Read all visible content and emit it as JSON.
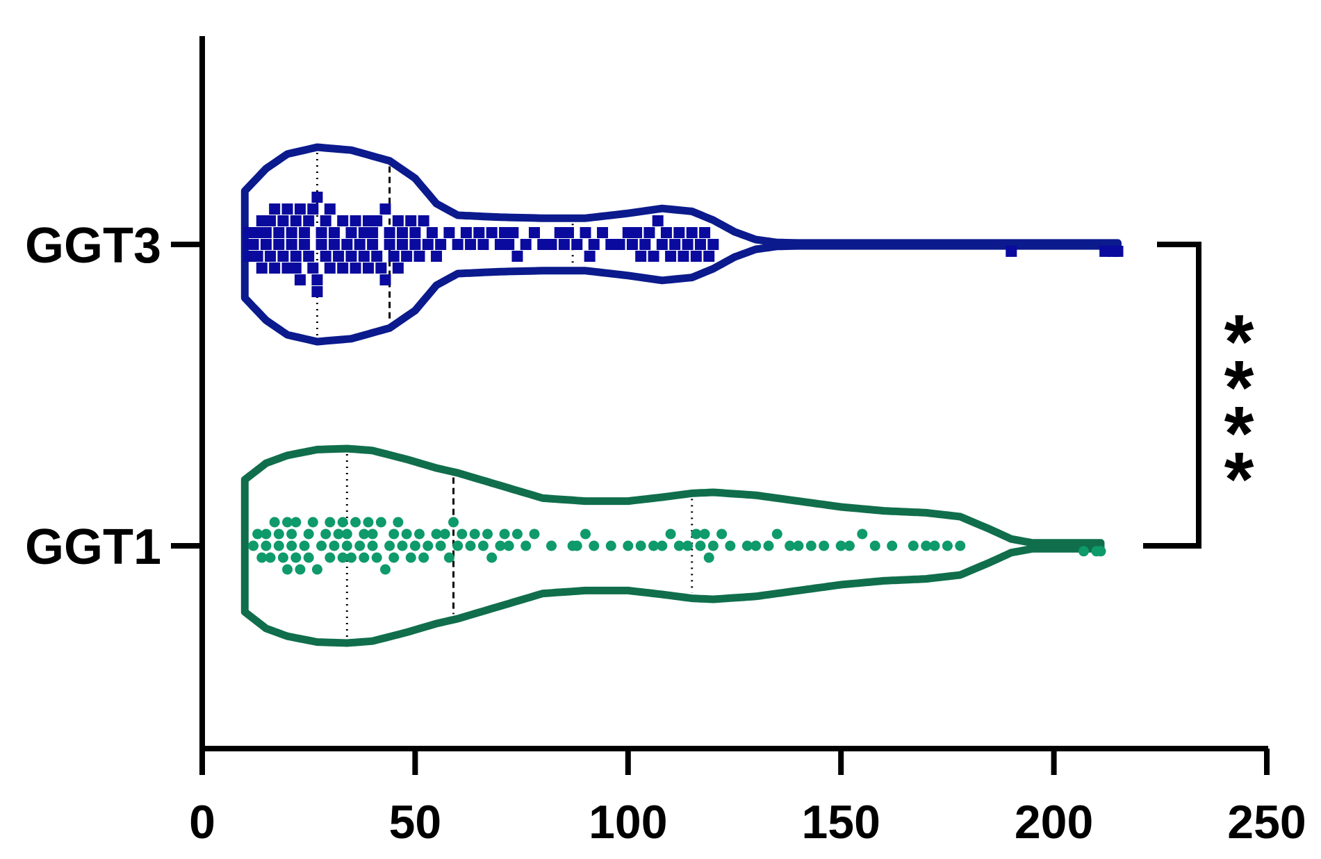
{
  "chart_data": {
    "type": "violin",
    "orientation": "horizontal",
    "title": "",
    "xlabel": "",
    "ylabel": "",
    "xlim": [
      0,
      250
    ],
    "x_ticks": [
      0,
      50,
      100,
      150,
      200,
      250
    ],
    "x_tick_labels": [
      "0",
      "50",
      "100",
      "150",
      "200",
      "250"
    ],
    "categories": [
      "GGT3",
      "GGT1"
    ],
    "grid": false,
    "legend": "none",
    "series": [
      {
        "name": "GGT3",
        "color": "#0a0a9e",
        "outline_color": "#0b1a8c",
        "marker": "square",
        "median": 44,
        "q1": 27,
        "q3": 87,
        "min": 10,
        "max": 215,
        "density": [
          [
            10,
            0.55
          ],
          [
            15,
            0.78
          ],
          [
            20,
            0.93
          ],
          [
            27,
            1.0
          ],
          [
            35,
            0.97
          ],
          [
            44,
            0.86
          ],
          [
            50,
            0.68
          ],
          [
            55,
            0.42
          ],
          [
            60,
            0.3
          ],
          [
            70,
            0.28
          ],
          [
            80,
            0.27
          ],
          [
            90,
            0.27
          ],
          [
            100,
            0.32
          ],
          [
            108,
            0.37
          ],
          [
            115,
            0.34
          ],
          [
            120,
            0.25
          ],
          [
            125,
            0.13
          ],
          [
            130,
            0.05
          ],
          [
            135,
            0.02
          ],
          [
            140,
            0.015
          ],
          [
            180,
            0.015
          ],
          [
            215,
            0.015
          ]
        ],
        "points": [
          11,
          11,
          11,
          12,
          13,
          13,
          14,
          14,
          15,
          15,
          16,
          16,
          17,
          17,
          18,
          18,
          19,
          19,
          20,
          20,
          21,
          21,
          22,
          22,
          22,
          23,
          23,
          24,
          24,
          25,
          25,
          26,
          26,
          27,
          27,
          27,
          28,
          28,
          29,
          29,
          30,
          30,
          31,
          31,
          32,
          33,
          33,
          34,
          35,
          35,
          36,
          36,
          37,
          38,
          38,
          39,
          39,
          40,
          40,
          41,
          41,
          42,
          43,
          43,
          44,
          44,
          45,
          46,
          46,
          47,
          47,
          48,
          49,
          50,
          50,
          51,
          52,
          53,
          54,
          55,
          56,
          58,
          60,
          62,
          63,
          65,
          66,
          68,
          70,
          71,
          72,
          73,
          74,
          76,
          78,
          80,
          82,
          84,
          85,
          86,
          88,
          90,
          91,
          92,
          94,
          96,
          98,
          100,
          101,
          102,
          103,
          104,
          105,
          106,
          107,
          108,
          109,
          110,
          111,
          112,
          113,
          114,
          115,
          116,
          117,
          118,
          119,
          120,
          190,
          212,
          214,
          215
        ]
      },
      {
        "name": "GGT1",
        "color": "#0e9a6a",
        "outline_color": "#106e4c",
        "marker": "circle",
        "median": 59,
        "q1": 34,
        "q3": 115,
        "min": 10,
        "max": 211,
        "density": [
          [
            10,
            0.68
          ],
          [
            15,
            0.85
          ],
          [
            20,
            0.93
          ],
          [
            27,
            0.99
          ],
          [
            34,
            1.0
          ],
          [
            40,
            0.98
          ],
          [
            48,
            0.89
          ],
          [
            55,
            0.8
          ],
          [
            60,
            0.75
          ],
          [
            70,
            0.62
          ],
          [
            80,
            0.49
          ],
          [
            90,
            0.46
          ],
          [
            100,
            0.46
          ],
          [
            108,
            0.5
          ],
          [
            115,
            0.54
          ],
          [
            120,
            0.55
          ],
          [
            130,
            0.52
          ],
          [
            140,
            0.46
          ],
          [
            150,
            0.4
          ],
          [
            160,
            0.36
          ],
          [
            170,
            0.34
          ],
          [
            178,
            0.3
          ],
          [
            185,
            0.17
          ],
          [
            190,
            0.07
          ],
          [
            195,
            0.03
          ],
          [
            211,
            0.03
          ]
        ],
        "points": [
          12,
          13,
          14,
          15,
          15,
          16,
          17,
          18,
          18,
          19,
          20,
          20,
          21,
          21,
          22,
          22,
          23,
          24,
          25,
          25,
          26,
          27,
          28,
          29,
          30,
          30,
          31,
          32,
          33,
          33,
          34,
          34,
          35,
          36,
          37,
          38,
          38,
          39,
          40,
          40,
          41,
          42,
          43,
          44,
          45,
          45,
          46,
          47,
          48,
          49,
          50,
          51,
          52,
          53,
          55,
          56,
          57,
          58,
          59,
          60,
          61,
          63,
          64,
          66,
          67,
          68,
          70,
          71,
          72,
          74,
          76,
          78,
          82,
          87,
          88,
          90,
          92,
          96,
          100,
          103,
          106,
          108,
          110,
          112,
          114,
          116,
          117,
          118,
          119,
          120,
          122,
          124,
          128,
          130,
          133,
          135,
          138,
          140,
          143,
          146,
          150,
          152,
          155,
          158,
          162,
          167,
          170,
          172,
          175,
          178,
          207,
          210,
          211
        ]
      }
    ],
    "annotations": [
      {
        "type": "significance-bracket",
        "between": [
          "GGT3",
          "GGT1"
        ],
        "label": "****"
      }
    ]
  }
}
